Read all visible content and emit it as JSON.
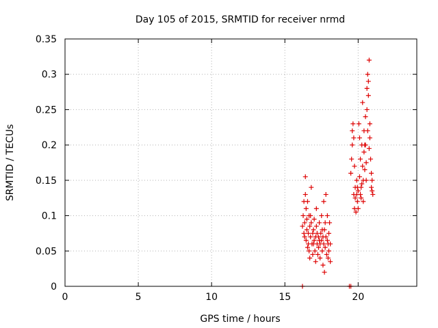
{
  "chart_data": {
    "type": "scatter",
    "title": "Day 105 of 2015, SRMTID for receiver nrmd",
    "xlabel": "GPS time / hours",
    "ylabel": "SRMTID / TECUs",
    "xlim": [
      0,
      24
    ],
    "ylim": [
      0,
      0.35
    ],
    "xticks": [
      0,
      5,
      10,
      15,
      20
    ],
    "xtick_labels": [
      "0",
      "5",
      "10",
      "15",
      "20"
    ],
    "yticks": [
      0,
      0.05,
      0.1,
      0.15,
      0.2,
      0.25,
      0.3,
      0.35
    ],
    "ytick_labels": [
      "0",
      "0.05",
      "0.1",
      "0.15",
      "0.2",
      "0.25",
      "0.3",
      "0.35"
    ],
    "grid": true,
    "marker": "plus",
    "color": "#dd0000",
    "series": [
      {
        "name": "",
        "points": [
          [
            16.2,
            0.0
          ],
          [
            19.4,
            0.0
          ],
          [
            19.5,
            0.0
          ],
          [
            16.2,
            0.085
          ],
          [
            16.25,
            0.1
          ],
          [
            16.3,
            0.12
          ],
          [
            16.3,
            0.075
          ],
          [
            16.35,
            0.09
          ],
          [
            16.4,
            0.13
          ],
          [
            16.4,
            0.155
          ],
          [
            16.45,
            0.11
          ],
          [
            16.45,
            0.065
          ],
          [
            16.5,
            0.08
          ],
          [
            16.5,
            0.095
          ],
          [
            16.55,
            0.12
          ],
          [
            16.6,
            0.06
          ],
          [
            16.6,
            0.075
          ],
          [
            16.65,
            0.05
          ],
          [
            16.65,
            0.1
          ],
          [
            16.7,
            0.085
          ],
          [
            16.7,
            0.04
          ],
          [
            16.75,
            0.07
          ],
          [
            16.8,
            0.09
          ],
          [
            16.8,
            0.14
          ],
          [
            16.85,
            0.06
          ],
          [
            16.9,
            0.075
          ],
          [
            16.9,
            0.045
          ],
          [
            16.95,
            0.08
          ],
          [
            17.0,
            0.065
          ],
          [
            17.0,
            0.095
          ],
          [
            17.05,
            0.05
          ],
          [
            17.1,
            0.07
          ],
          [
            17.1,
            0.035
          ],
          [
            17.15,
            0.085
          ],
          [
            17.2,
            0.06
          ],
          [
            17.2,
            0.075
          ],
          [
            17.25,
            0.045
          ],
          [
            17.3,
            0.07
          ],
          [
            17.3,
            0.055
          ],
          [
            17.35,
            0.09
          ],
          [
            17.4,
            0.06
          ],
          [
            17.4,
            0.04
          ],
          [
            17.45,
            0.075
          ],
          [
            17.5,
            0.065
          ],
          [
            17.5,
            0.1
          ],
          [
            17.55,
            0.05
          ],
          [
            17.6,
            0.07
          ],
          [
            17.6,
            0.03
          ],
          [
            17.65,
            0.06
          ],
          [
            17.7,
            0.08
          ],
          [
            17.7,
            0.02
          ],
          [
            17.75,
            0.055
          ],
          [
            17.8,
            0.13
          ],
          [
            17.8,
            0.07
          ],
          [
            17.85,
            0.045
          ],
          [
            17.9,
            0.065
          ],
          [
            17.9,
            0.1
          ],
          [
            17.95,
            0.06
          ],
          [
            18.0,
            0.075
          ],
          [
            18.0,
            0.05
          ],
          [
            18.05,
            0.09
          ],
          [
            18.1,
            0.06
          ],
          [
            18.1,
            0.035
          ],
          [
            16.35,
            0.07
          ],
          [
            16.55,
            0.055
          ],
          [
            16.75,
            0.1
          ],
          [
            16.95,
            0.06
          ],
          [
            17.15,
            0.11
          ],
          [
            17.35,
            0.065
          ],
          [
            17.55,
            0.08
          ],
          [
            17.75,
            0.09
          ],
          [
            17.95,
            0.04
          ],
          [
            17.65,
            0.12
          ],
          [
            19.5,
            0.16
          ],
          [
            19.55,
            0.18
          ],
          [
            19.6,
            0.2
          ],
          [
            19.6,
            0.22
          ],
          [
            19.65,
            0.23
          ],
          [
            19.7,
            0.21
          ],
          [
            19.7,
            0.13
          ],
          [
            19.75,
            0.11
          ],
          [
            19.8,
            0.125
          ],
          [
            19.8,
            0.14
          ],
          [
            19.85,
            0.105
          ],
          [
            19.9,
            0.13
          ],
          [
            19.9,
            0.15
          ],
          [
            19.95,
            0.12
          ],
          [
            20.0,
            0.135
          ],
          [
            20.0,
            0.11
          ],
          [
            20.05,
            0.23
          ],
          [
            20.1,
            0.21
          ],
          [
            20.1,
            0.155
          ],
          [
            20.15,
            0.18
          ],
          [
            20.2,
            0.125
          ],
          [
            20.2,
            0.14
          ],
          [
            20.25,
            0.2
          ],
          [
            20.3,
            0.26
          ],
          [
            20.3,
            0.17
          ],
          [
            20.35,
            0.15
          ],
          [
            20.4,
            0.22
          ],
          [
            20.4,
            0.19
          ],
          [
            20.45,
            0.165
          ],
          [
            20.5,
            0.24
          ],
          [
            20.5,
            0.2
          ],
          [
            20.55,
            0.15
          ],
          [
            20.6,
            0.28
          ],
          [
            20.6,
            0.25
          ],
          [
            20.65,
            0.3
          ],
          [
            20.7,
            0.29
          ],
          [
            20.7,
            0.27
          ],
          [
            20.75,
            0.32
          ],
          [
            20.8,
            0.21
          ],
          [
            20.8,
            0.23
          ],
          [
            20.85,
            0.18
          ],
          [
            20.9,
            0.14
          ],
          [
            20.9,
            0.16
          ],
          [
            20.95,
            0.135
          ],
          [
            21.0,
            0.13
          ],
          [
            19.75,
            0.17
          ],
          [
            19.95,
            0.14
          ],
          [
            20.15,
            0.13
          ],
          [
            20.35,
            0.12
          ],
          [
            20.55,
            0.175
          ],
          [
            20.75,
            0.195
          ],
          [
            20.95,
            0.15
          ],
          [
            20.25,
            0.145
          ],
          [
            20.45,
            0.2
          ],
          [
            20.65,
            0.22
          ]
        ]
      }
    ]
  }
}
